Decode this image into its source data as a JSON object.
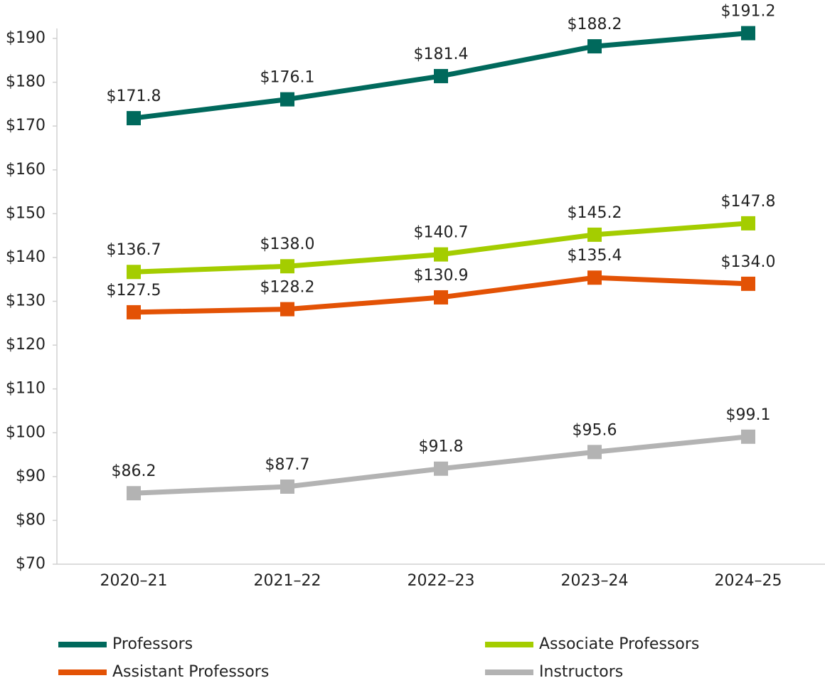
{
  "chart_data": {
    "type": "line",
    "categories": [
      "2020–21",
      "2021–22",
      "2022–23",
      "2023–24",
      "2024–25"
    ],
    "series": [
      {
        "name": "Professors",
        "color": "#00695c",
        "values": [
          171.8,
          176.1,
          181.4,
          188.2,
          191.2
        ],
        "value_labels": [
          "$171.8",
          "$176.1",
          "$181.4",
          "$188.2",
          "$191.2"
        ]
      },
      {
        "name": "Associate Professors",
        "color": "#a4cd00",
        "values": [
          136.7,
          138.0,
          140.7,
          145.2,
          147.8
        ],
        "value_labels": [
          "$136.7",
          "$138.0",
          "$140.7",
          "$145.2",
          "$147.8"
        ]
      },
      {
        "name": "Assistant Professors",
        "color": "#e35205",
        "values": [
          127.5,
          128.2,
          130.9,
          135.4,
          134.0
        ],
        "value_labels": [
          "$127.5",
          "$128.2",
          "$130.9",
          "$135.4",
          "$134.0"
        ]
      },
      {
        "name": "Instructors",
        "color": "#b3b3b3",
        "values": [
          86.2,
          87.7,
          91.8,
          95.6,
          99.1
        ],
        "value_labels": [
          "$86.2",
          "$87.7",
          "$91.8",
          "$95.6",
          "$99.1"
        ]
      }
    ],
    "ylim": [
      70,
      190
    ],
    "yticks": [
      {
        "value": 70,
        "label": "$70"
      },
      {
        "value": 80,
        "label": "$80"
      },
      {
        "value": 90,
        "label": "$90"
      },
      {
        "value": 100,
        "label": "$100"
      },
      {
        "value": 110,
        "label": "$110"
      },
      {
        "value": 120,
        "label": "$120"
      },
      {
        "value": 130,
        "label": "$130"
      },
      {
        "value": 140,
        "label": "$140"
      },
      {
        "value": 150,
        "label": "$150"
      },
      {
        "value": 160,
        "label": "$160"
      },
      {
        "value": 170,
        "label": "$170"
      },
      {
        "value": 180,
        "label": "$180"
      },
      {
        "value": 190,
        "label": "$190"
      }
    ],
    "grid": false,
    "legend": "bottom"
  }
}
